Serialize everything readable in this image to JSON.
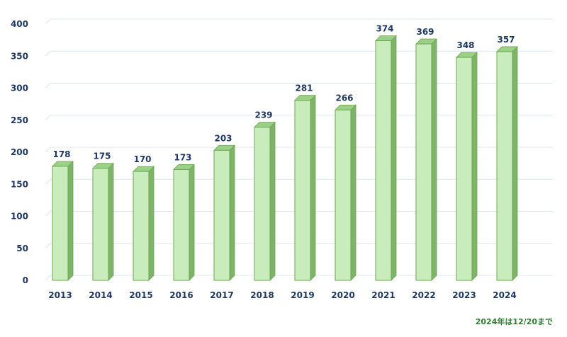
{
  "chart_data": {
    "type": "bar",
    "categories": [
      "2013",
      "2014",
      "2015",
      "2016",
      "2017",
      "2018",
      "2019",
      "2020",
      "2021",
      "2022",
      "2023",
      "2024"
    ],
    "values": [
      178,
      175,
      170,
      173,
      203,
      239,
      281,
      266,
      374,
      369,
      348,
      357
    ],
    "data_labels": [
      "178",
      "175",
      "170",
      "173",
      "203",
      "239",
      "281",
      "266",
      "374",
      "369",
      "348",
      "357"
    ],
    "yticks": [
      "0",
      "50",
      "100",
      "150",
      "200",
      "250",
      "300",
      "350",
      "400"
    ],
    "ylim": [
      0,
      400
    ],
    "grid": true,
    "legend": "none",
    "colors": {
      "bar_face": "#c9ecbd",
      "bar_side": "#7fb36a",
      "bar_top": "#9ccf88",
      "bar_stroke": "#6aa84f",
      "grid": "#dce6f2",
      "text": "#1f3864"
    },
    "annotation": "2024年は12/20まで"
  }
}
